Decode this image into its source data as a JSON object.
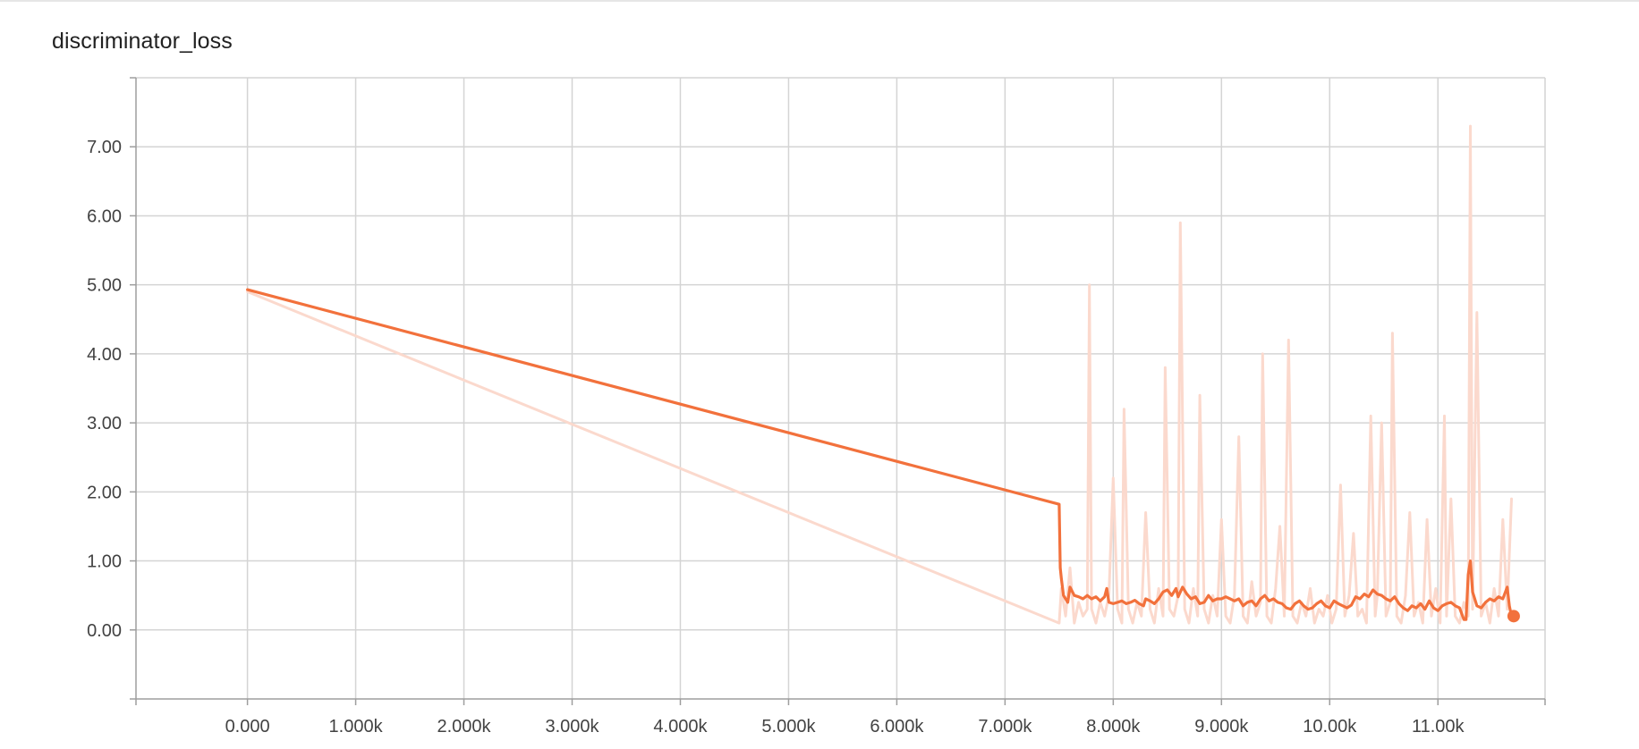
{
  "chart_data": {
    "type": "line",
    "title": "discriminator_loss",
    "xlabel": "",
    "ylabel": "",
    "grid": true,
    "x_ticks": [
      "0.000",
      "1.000k",
      "2.000k",
      "3.000k",
      "4.000k",
      "5.000k",
      "6.000k",
      "7.000k",
      "8.000k",
      "9.000k",
      "10.00k",
      "11.00k"
    ],
    "x_tick_values": [
      0,
      1000,
      2000,
      3000,
      4000,
      5000,
      6000,
      7000,
      8000,
      9000,
      10000,
      11000
    ],
    "y_ticks": [
      "0.00",
      "1.00",
      "2.00",
      "3.00",
      "4.00",
      "5.00",
      "6.00",
      "7.00"
    ],
    "y_tick_values": [
      0,
      1,
      2,
      3,
      4,
      5,
      6,
      7
    ],
    "xlim": [
      -1030,
      11990
    ],
    "ylim": [
      -1.0,
      8.0
    ],
    "colors": {
      "smoothed": "#f2713c",
      "raw": "#fbd9cd",
      "grid": "#d4d4d4",
      "axis": "#9e9e9e"
    },
    "series": [
      {
        "role": "raw",
        "x": [
          0,
          7500,
          7520,
          7560,
          7600,
          7640,
          7680,
          7720,
          7760,
          7780,
          7800,
          7840,
          7880,
          7920,
          7960,
          8000,
          8040,
          8080,
          8100,
          8140,
          8180,
          8220,
          8260,
          8300,
          8340,
          8380,
          8420,
          8460,
          8480,
          8520,
          8560,
          8600,
          8620,
          8660,
          8700,
          8740,
          8780,
          8800,
          8840,
          8880,
          8920,
          8960,
          9000,
          9040,
          9080,
          9120,
          9160,
          9200,
          9240,
          9280,
          9320,
          9360,
          9380,
          9420,
          9460,
          9500,
          9540,
          9580,
          9620,
          9660,
          9700,
          9740,
          9780,
          9820,
          9860,
          9900,
          9940,
          9980,
          10020,
          10060,
          10100,
          10140,
          10180,
          10220,
          10260,
          10300,
          10340,
          10380,
          10420,
          10440,
          10480,
          10520,
          10560,
          10580,
          10620,
          10660,
          10700,
          10740,
          10780,
          10820,
          10860,
          10900,
          10940,
          10980,
          11020,
          11060,
          11080,
          11120,
          11160,
          11200,
          11240,
          11280,
          11300,
          11320,
          11360,
          11400,
          11440,
          11480,
          11520,
          11560,
          11600,
          11640,
          11680
        ],
        "y": [
          4.9,
          0.1,
          0.6,
          0.2,
          0.9,
          0.1,
          0.4,
          0.2,
          0.3,
          5.0,
          0.3,
          0.1,
          0.4,
          0.2,
          0.5,
          2.2,
          0.3,
          0.1,
          3.2,
          0.3,
          0.1,
          0.4,
          0.2,
          1.7,
          0.3,
          0.1,
          0.6,
          0.2,
          3.8,
          0.3,
          0.2,
          0.5,
          5.9,
          0.3,
          0.1,
          0.6,
          0.2,
          3.4,
          0.3,
          0.1,
          0.5,
          0.2,
          1.6,
          0.2,
          0.1,
          0.5,
          2.8,
          0.2,
          0.1,
          0.7,
          0.2,
          0.4,
          4.0,
          0.2,
          0.1,
          0.6,
          1.5,
          0.2,
          4.2,
          0.2,
          0.1,
          0.4,
          0.2,
          0.6,
          0.1,
          0.3,
          0.2,
          0.5,
          0.1,
          0.3,
          2.1,
          0.2,
          0.5,
          1.4,
          0.2,
          0.3,
          0.1,
          3.1,
          0.2,
          0.5,
          3.0,
          0.2,
          0.4,
          4.3,
          0.2,
          0.1,
          0.5,
          1.7,
          0.2,
          0.4,
          0.1,
          1.6,
          0.2,
          0.6,
          0.1,
          3.1,
          0.2,
          1.9,
          0.2,
          0.1,
          0.4,
          0.2,
          7.3,
          0.3,
          4.6,
          0.2,
          0.4,
          0.1,
          0.6,
          0.2,
          1.6,
          0.3,
          1.9
        ]
      },
      {
        "role": "smoothed",
        "x": [
          0,
          7500,
          7510,
          7520,
          7540,
          7560,
          7580,
          7600,
          7640,
          7680,
          7720,
          7760,
          7800,
          7840,
          7880,
          7920,
          7940,
          7960,
          8000,
          8040,
          8080,
          8120,
          8160,
          8200,
          8240,
          8280,
          8300,
          8340,
          8380,
          8420,
          8460,
          8500,
          8540,
          8580,
          8600,
          8640,
          8680,
          8720,
          8760,
          8800,
          8840,
          8880,
          8920,
          8960,
          9000,
          9040,
          9080,
          9120,
          9160,
          9200,
          9240,
          9280,
          9320,
          9360,
          9400,
          9440,
          9480,
          9520,
          9560,
          9600,
          9640,
          9680,
          9720,
          9760,
          9800,
          9840,
          9880,
          9920,
          9960,
          10000,
          10040,
          10080,
          10120,
          10160,
          10200,
          10240,
          10280,
          10320,
          10360,
          10400,
          10440,
          10480,
          10520,
          10560,
          10600,
          10640,
          10680,
          10720,
          10760,
          10800,
          10840,
          10880,
          10920,
          10960,
          11000,
          11040,
          11080,
          11120,
          11160,
          11200,
          11240,
          11260,
          11280,
          11300,
          11320,
          11340,
          11360,
          11400,
          11440,
          11480,
          11520,
          11560,
          11600,
          11640,
          11660,
          11680
        ],
        "y": [
          4.93,
          1.82,
          0.9,
          0.75,
          0.5,
          0.45,
          0.4,
          0.62,
          0.5,
          0.48,
          0.45,
          0.5,
          0.45,
          0.48,
          0.42,
          0.48,
          0.6,
          0.4,
          0.38,
          0.4,
          0.42,
          0.38,
          0.4,
          0.43,
          0.38,
          0.35,
          0.45,
          0.42,
          0.38,
          0.45,
          0.55,
          0.58,
          0.5,
          0.6,
          0.48,
          0.62,
          0.52,
          0.45,
          0.48,
          0.38,
          0.4,
          0.5,
          0.42,
          0.45,
          0.45,
          0.48,
          0.45,
          0.42,
          0.45,
          0.35,
          0.4,
          0.42,
          0.35,
          0.45,
          0.5,
          0.42,
          0.45,
          0.4,
          0.38,
          0.32,
          0.3,
          0.38,
          0.42,
          0.35,
          0.3,
          0.32,
          0.38,
          0.42,
          0.35,
          0.32,
          0.42,
          0.38,
          0.35,
          0.32,
          0.36,
          0.48,
          0.45,
          0.52,
          0.48,
          0.58,
          0.52,
          0.5,
          0.45,
          0.42,
          0.48,
          0.38,
          0.32,
          0.28,
          0.35,
          0.32,
          0.38,
          0.3,
          0.42,
          0.32,
          0.28,
          0.35,
          0.38,
          0.4,
          0.35,
          0.32,
          0.15,
          0.15,
          0.8,
          1.0,
          0.55,
          0.45,
          0.35,
          0.32,
          0.4,
          0.45,
          0.42,
          0.48,
          0.45,
          0.62,
          0.35,
          0.2
        ]
      }
    ],
    "last_point": {
      "x": 11700,
      "y": 0.2
    }
  }
}
